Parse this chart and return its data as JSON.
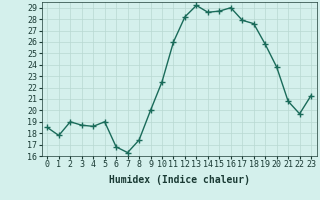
{
  "xlabel": "Humidex (Indice chaleur)",
  "x": [
    0,
    1,
    2,
    3,
    4,
    5,
    6,
    7,
    8,
    9,
    10,
    11,
    12,
    13,
    14,
    15,
    16,
    17,
    18,
    19,
    20,
    21,
    22,
    23
  ],
  "y": [
    18.5,
    17.8,
    19.0,
    18.7,
    18.6,
    19.0,
    16.8,
    16.3,
    17.4,
    20.0,
    22.5,
    26.0,
    28.2,
    29.2,
    28.6,
    28.7,
    29.0,
    27.9,
    27.6,
    25.8,
    23.8,
    20.8,
    19.7,
    21.3
  ],
  "line_color": "#1a6b5a",
  "marker": "+",
  "marker_size": 4,
  "marker_lw": 1.0,
  "line_width": 1.0,
  "bg_color": "#d4f0ec",
  "grid_color": "#b8d8d2",
  "text_color": "#1a3a34",
  "ylim": [
    16,
    29.5
  ],
  "yticks": [
    16,
    17,
    18,
    19,
    20,
    21,
    22,
    23,
    24,
    25,
    26,
    27,
    28,
    29
  ],
  "xticks": [
    0,
    1,
    2,
    3,
    4,
    5,
    6,
    7,
    8,
    9,
    10,
    11,
    12,
    13,
    14,
    15,
    16,
    17,
    18,
    19,
    20,
    21,
    22,
    23
  ],
  "tick_fontsize": 6,
  "xlabel_fontsize": 7
}
